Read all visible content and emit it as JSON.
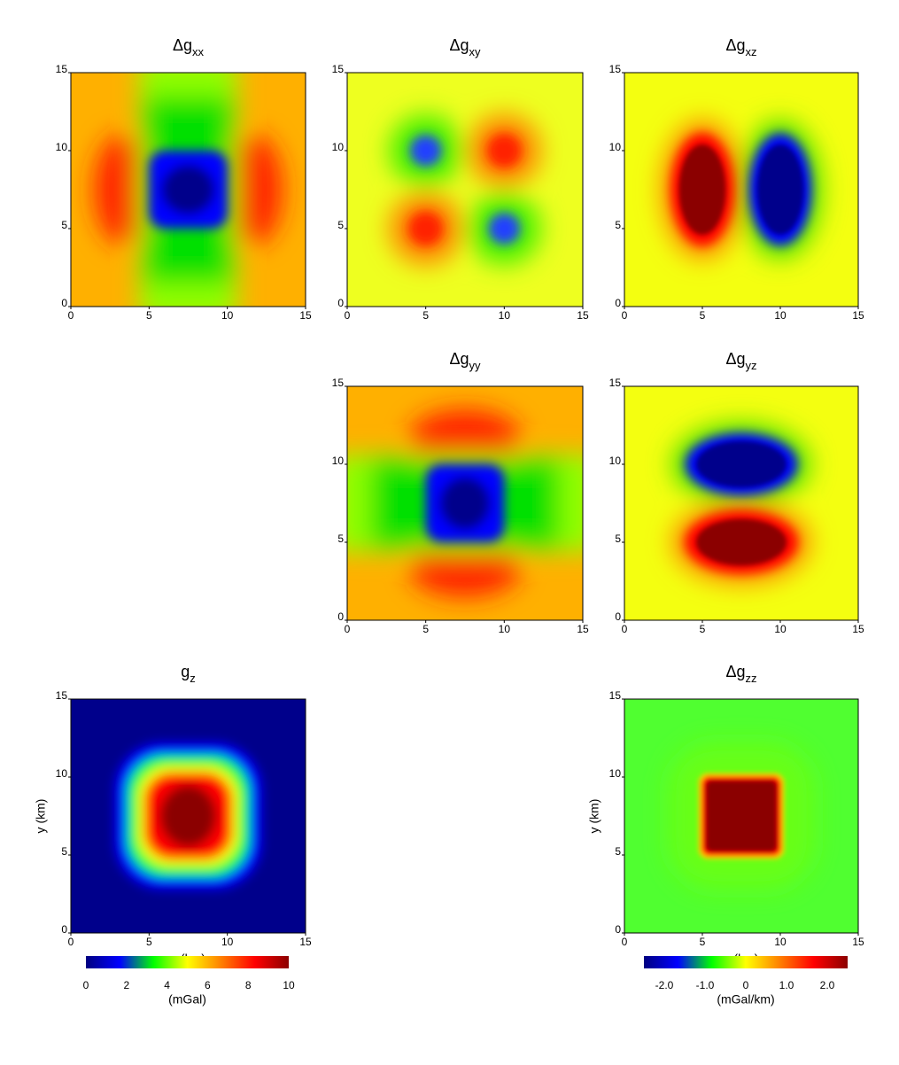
{
  "chart_data": [
    {
      "type": "heatmap",
      "title": "Δg",
      "title_sub": "xx",
      "xlim": [
        0,
        15
      ],
      "ylim": [
        0,
        15
      ],
      "xticks": [
        0,
        5,
        10,
        15
      ],
      "yticks": [
        0,
        5,
        10,
        15
      ]
    },
    {
      "type": "heatmap",
      "title": "Δg",
      "title_sub": "xy",
      "xlim": [
        0,
        15
      ],
      "ylim": [
        0,
        15
      ],
      "xticks": [
        0,
        5,
        10,
        15
      ],
      "yticks": [
        0,
        5,
        10,
        15
      ]
    },
    {
      "type": "heatmap",
      "title": "Δg",
      "title_sub": "xz",
      "xlim": [
        0,
        15
      ],
      "ylim": [
        0,
        15
      ],
      "xticks": [
        0,
        5,
        10,
        15
      ],
      "yticks": [
        0,
        5,
        10,
        15
      ]
    },
    {
      "type": "heatmap",
      "title": "Δg",
      "title_sub": "yy",
      "xlim": [
        0,
        15
      ],
      "ylim": [
        0,
        15
      ],
      "xticks": [
        0,
        5,
        10,
        15
      ],
      "yticks": [
        0,
        5,
        10,
        15
      ]
    },
    {
      "type": "heatmap",
      "title": "Δg",
      "title_sub": "yz",
      "xlim": [
        0,
        15
      ],
      "ylim": [
        0,
        15
      ],
      "xticks": [
        0,
        5,
        10,
        15
      ],
      "yticks": [
        0,
        5,
        10,
        15
      ]
    },
    {
      "type": "heatmap",
      "title": "g",
      "title_sub": "z",
      "xlabel": "x (km)",
      "ylabel": "y (km)",
      "xlim": [
        0,
        15
      ],
      "ylim": [
        0,
        15
      ],
      "xticks": [
        0,
        5,
        10,
        15
      ],
      "yticks": [
        0,
        5,
        10,
        15
      ]
    },
    {
      "type": "heatmap",
      "title": "Δg",
      "title_sub": "zz",
      "xlabel": "x (km)",
      "ylabel": "y (km)",
      "xlim": [
        0,
        15
      ],
      "ylim": [
        0,
        15
      ],
      "xticks": [
        0,
        5,
        10,
        15
      ],
      "yticks": [
        0,
        5,
        10,
        15
      ]
    },
    {
      "type": "colorbar",
      "label": "(mGal)",
      "lim": [
        0,
        10
      ],
      "ticks": [
        0,
        2,
        4,
        6,
        8,
        10
      ],
      "colors": [
        "#000080",
        "#0000ff",
        "#00ff00",
        "#ffff00",
        "#ff8000",
        "#ff0000",
        "#8b0000"
      ]
    },
    {
      "type": "colorbar",
      "label": "(mGal/km)",
      "lim": [
        -2.5,
        2.5
      ],
      "ticks": [
        {
          "value": -2,
          "label": "-2.0"
        },
        {
          "value": -1,
          "label": "-1.0"
        },
        0,
        {
          "value": 1,
          "label": "1.0"
        },
        {
          "value": 2,
          "label": "2.0"
        }
      ],
      "colors": [
        "#000080",
        "#0000ff",
        "#00ff00",
        "#ffff00",
        "#ff8000",
        "#ff0000",
        "#8b0000"
      ]
    }
  ]
}
